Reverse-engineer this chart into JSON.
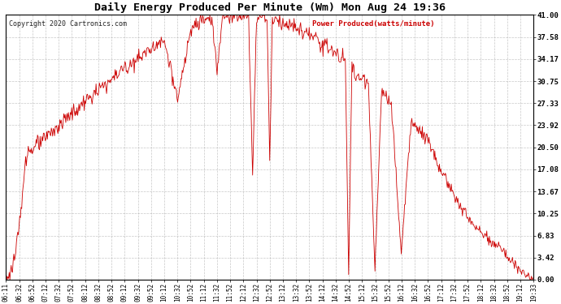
{
  "title": "Daily Energy Produced Per Minute (Wm) Mon Aug 24 19:36",
  "copyright": "Copyright 2020 Cartronics.com",
  "legend_label": "Power Produced(watts/minute)",
  "legend_color": "#cc0000",
  "line_color": "#cc0000",
  "background_color": "#ffffff",
  "grid_color": "#b0b0b0",
  "yticks": [
    0.0,
    3.42,
    6.83,
    10.25,
    13.67,
    17.08,
    20.5,
    23.92,
    27.33,
    30.75,
    34.17,
    37.58,
    41.0
  ],
  "ymax": 41.0,
  "ymin": 0.0,
  "xtick_labels": [
    "06:11",
    "06:32",
    "06:52",
    "07:12",
    "07:32",
    "07:52",
    "08:12",
    "08:32",
    "08:52",
    "09:12",
    "09:32",
    "09:52",
    "10:12",
    "10:32",
    "10:52",
    "11:12",
    "11:32",
    "11:52",
    "12:12",
    "12:32",
    "12:52",
    "13:12",
    "13:32",
    "13:52",
    "14:12",
    "14:32",
    "14:52",
    "15:12",
    "15:32",
    "15:52",
    "16:12",
    "16:32",
    "16:52",
    "17:12",
    "17:32",
    "17:52",
    "18:12",
    "18:32",
    "18:52",
    "19:12",
    "19:33"
  ],
  "figsize": [
    6.9,
    3.75
  ],
  "dpi": 100
}
